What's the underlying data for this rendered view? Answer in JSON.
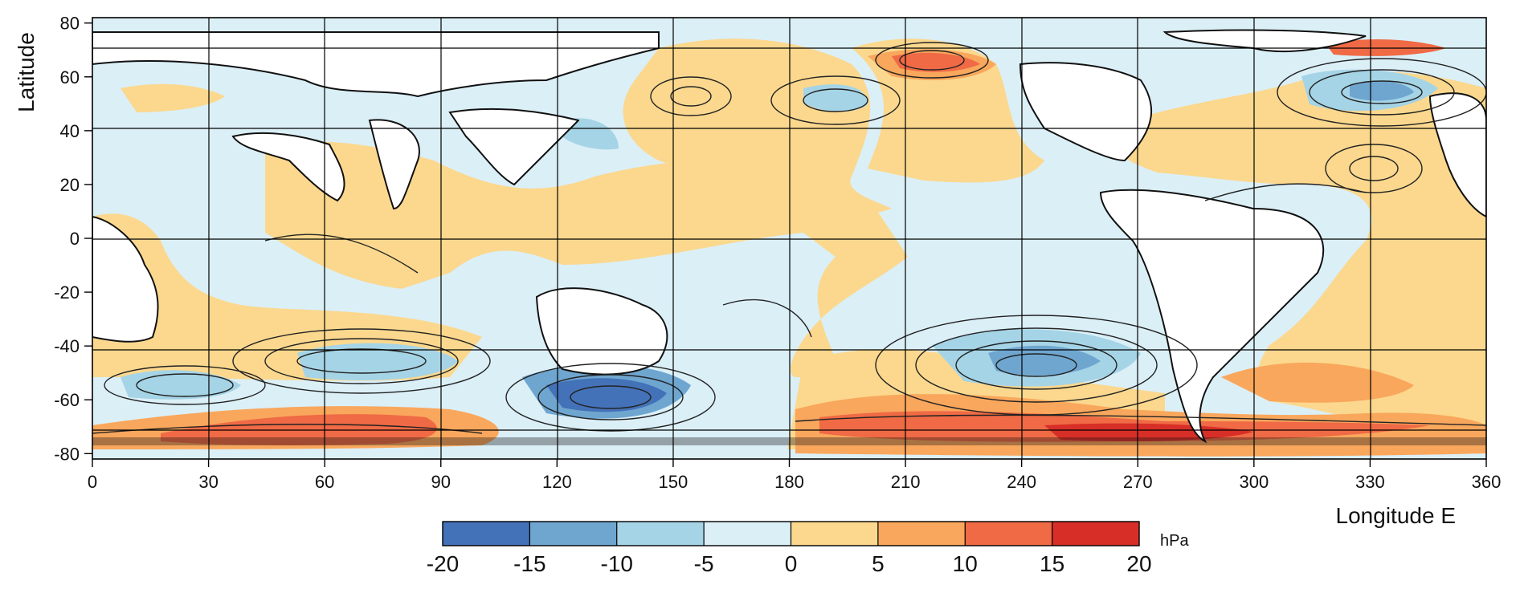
{
  "map": {
    "xlabel": "Longitude E",
    "ylabel": "Latitude",
    "x_ticks": [
      "0",
      "30",
      "60",
      "90",
      "120",
      "150",
      "180",
      "210",
      "240",
      "270",
      "300",
      "330",
      "360"
    ],
    "y_ticks": [
      "80",
      "60",
      "40",
      "20",
      "0",
      "-20",
      "-40",
      "-60",
      "-80"
    ],
    "x_range": [
      0,
      360
    ],
    "y_range": [
      -82,
      82
    ],
    "grid": true
  },
  "colorbar": {
    "unit": "hPa",
    "labels": [
      "-20",
      "-15",
      "-10",
      "-5",
      "0",
      "5",
      "10",
      "15",
      "20"
    ],
    "colors": [
      "#4472b8",
      "#6fa6d0",
      "#a5d4e6",
      "#dbeff7",
      "#fbd88e",
      "#f9a75c",
      "#ef6a45",
      "#d72f27"
    ]
  },
  "palette": {
    "land": "#ffffff",
    "coast": "#111111",
    "contour": "#222222",
    "grid": "#000000"
  }
}
